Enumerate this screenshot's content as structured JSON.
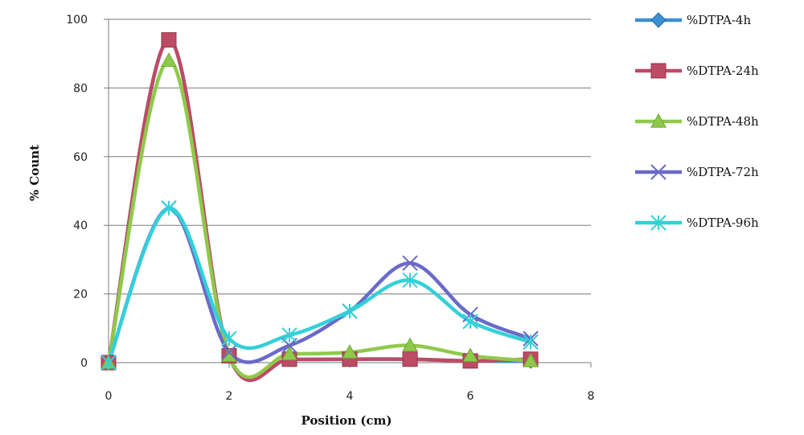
{
  "chart_data": {
    "type": "line",
    "xlabel": "Position (cm)",
    "ylabel": "% Count",
    "xlim": [
      0,
      8
    ],
    "ylim": [
      0,
      100
    ],
    "x_ticks": [
      0,
      2,
      4,
      6,
      8
    ],
    "y_ticks": [
      0,
      20,
      40,
      60,
      80,
      100
    ],
    "grid": "horizontal",
    "legend_position": "right",
    "x": [
      0,
      1,
      2,
      3,
      4,
      5,
      6,
      7
    ],
    "series": [
      {
        "name": "%DTPA-4h",
        "color": "#3c8fd2",
        "marker": "diamond",
        "values": [
          0,
          94,
          2,
          1,
          1,
          1,
          0.5,
          0.5
        ]
      },
      {
        "name": "%DTPA-24h",
        "color": "#bd4b65",
        "marker": "square",
        "values": [
          0,
          94,
          2,
          1,
          1,
          1,
          0.5,
          1
        ]
      },
      {
        "name": "%DTPA-48h",
        "color": "#8fc94a",
        "marker": "triangle",
        "values": [
          0,
          88,
          2,
          2.5,
          3,
          5,
          2,
          0.5
        ]
      },
      {
        "name": "%DTPA-72h",
        "color": "#6a6ac8",
        "marker": "x",
        "values": [
          0,
          45,
          3,
          5,
          15,
          29,
          14,
          7
        ]
      },
      {
        "name": "%DTPA-96h",
        "color": "#33d0d8",
        "marker": "star",
        "values": [
          0,
          45,
          7,
          8,
          15,
          24,
          12,
          6
        ]
      }
    ]
  }
}
